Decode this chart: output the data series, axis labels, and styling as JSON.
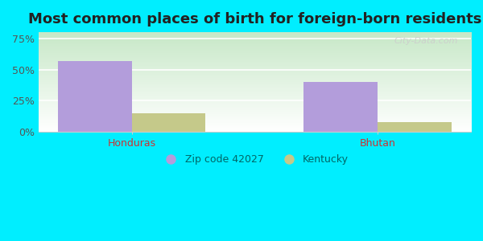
{
  "title": "Most common places of birth for foreign-born residents",
  "categories": [
    "Honduras",
    "Bhutan"
  ],
  "zip_values": [
    57,
    40
  ],
  "ky_values": [
    15,
    8
  ],
  "zip_color": "#b39ddb",
  "ky_color": "#c5c98a",
  "zip_label": "Zip code 42027",
  "ky_label": "Kentucky",
  "xlabel_color": "#cc3333",
  "ytick_labels": [
    "0%",
    "25%",
    "50%",
    "75%"
  ],
  "ytick_values": [
    0,
    25,
    50,
    75
  ],
  "ylim": [
    0,
    80
  ],
  "bar_width": 0.3,
  "title_fontsize": 13,
  "tick_fontsize": 9,
  "legend_fontsize": 9,
  "outer_bg_color": "#00eeff",
  "plot_bg_top": "#c8e6c9",
  "plot_bg_bottom": "#ffffff",
  "watermark_text": "City-Data.com",
  "watermark_color": "#cccccc",
  "grid_color": "#ffffff",
  "spine_color": "#cccccc"
}
